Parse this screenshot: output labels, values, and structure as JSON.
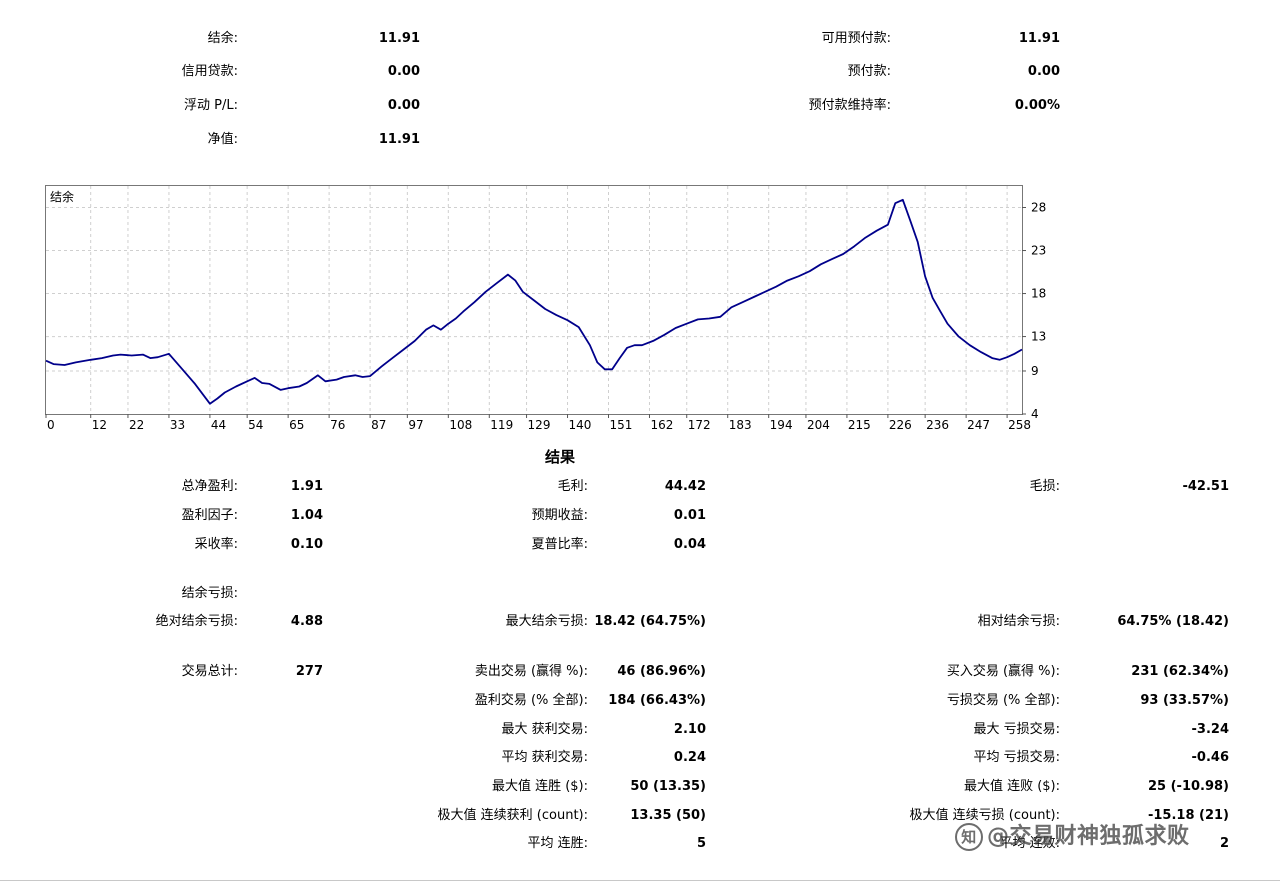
{
  "account": {
    "balance_label": "结余:",
    "balance": "11.91",
    "credit_label": "信用贷款:",
    "credit": "0.00",
    "floating_label": "浮动 P/L:",
    "floating": "0.00",
    "equity_label": "净值:",
    "equity": "11.91",
    "free_margin_label": "可用预付款:",
    "free_margin": "11.91",
    "margin_label": "预付款:",
    "margin": "0.00",
    "margin_level_label": "预付款维持率:",
    "margin_level": "0.00%"
  },
  "chart_data": {
    "type": "line",
    "title": "结余",
    "x_ticks": [
      0,
      12,
      22,
      33,
      44,
      54,
      65,
      76,
      87,
      97,
      108,
      119,
      129,
      140,
      151,
      162,
      172,
      183,
      194,
      204,
      215,
      226,
      236,
      247,
      258
    ],
    "y_ticks": [
      4,
      9,
      13,
      18,
      23,
      28
    ],
    "xlim": [
      0,
      262
    ],
    "ylim": [
      4,
      30.5
    ],
    "line_color": "#00008b",
    "series": [
      {
        "x": [
          0,
          2,
          5,
          8,
          12,
          15,
          18,
          20,
          23,
          26,
          28,
          30,
          33,
          36,
          40,
          44,
          46,
          48,
          51,
          54,
          56,
          58,
          60,
          63,
          65,
          68,
          70,
          73,
          75,
          78,
          80,
          83,
          85,
          87,
          90,
          93,
          96,
          99,
          102,
          104,
          106,
          108,
          110,
          112,
          115,
          118,
          121,
          124,
          126,
          128,
          131,
          134,
          137,
          140,
          143,
          146,
          148,
          150,
          152,
          154,
          156,
          158,
          160,
          163,
          166,
          169,
          172,
          175,
          178,
          181,
          184,
          187,
          190,
          193,
          196,
          199,
          202,
          205,
          208,
          211,
          214,
          217,
          220,
          223,
          226,
          228,
          230,
          232,
          234,
          236,
          238,
          240,
          242,
          245,
          248,
          251,
          254,
          256,
          258,
          260,
          262
        ],
        "y": [
          10.2,
          9.8,
          9.7,
          10,
          10.3,
          10.5,
          10.8,
          10.9,
          10.8,
          10.9,
          10.5,
          10.6,
          11,
          9.5,
          7.5,
          5.2,
          5.8,
          6.5,
          7.2,
          7.8,
          8.2,
          7.6,
          7.5,
          6.8,
          7,
          7.2,
          7.6,
          8.5,
          7.8,
          8,
          8.3,
          8.5,
          8.3,
          8.4,
          9.5,
          10.5,
          11.5,
          12.5,
          13.8,
          14.3,
          13.8,
          14.5,
          15.1,
          15.9,
          17,
          18.2,
          19.2,
          20.2,
          19.5,
          18.2,
          17.2,
          16.2,
          15.5,
          14.9,
          14.1,
          12,
          10,
          9.2,
          9.2,
          10.5,
          11.7,
          12,
          12,
          12.5,
          13.2,
          14,
          14.5,
          15,
          15.1,
          15.3,
          16.4,
          17,
          17.6,
          18.2,
          18.8,
          19.5,
          20,
          20.6,
          21.4,
          22,
          22.6,
          23.5,
          24.5,
          25.3,
          26,
          28.5,
          28.9,
          26.5,
          24,
          20,
          17.5,
          16,
          14.5,
          13,
          12,
          11.2,
          10.5,
          10.3,
          10.6,
          11,
          11.5
        ]
      }
    ]
  },
  "results": {
    "title": "结果",
    "net_profit_label": "总净盈利:",
    "net_profit": "1.91",
    "gross_profit_label": "毛利:",
    "gross_profit": "44.42",
    "gross_loss_label": "毛损:",
    "gross_loss": "-42.51",
    "profit_factor_label": "盈利因子:",
    "profit_factor": "1.04",
    "expected_payoff_label": "预期收益:",
    "expected_payoff": "0.01",
    "recovery_factor_label": "采收率:",
    "recovery_factor": "0.10",
    "sharpe_label": "夏普比率:",
    "sharpe": "0.04",
    "balance_drawdown_label": "结余亏损:",
    "abs_drawdown_label": "绝对结余亏损:",
    "abs_drawdown": "4.88",
    "max_drawdown_label": "最大结余亏损:",
    "max_drawdown": "18.42 (64.75%)",
    "rel_drawdown_label": "相对结余亏损:",
    "rel_drawdown": "64.75% (18.42)",
    "total_trades_label": "交易总计:",
    "total_trades": "277",
    "short_trades_label": "卖出交易 (赢得 %):",
    "short_trades": "46 (86.96%)",
    "long_trades_label": "买入交易 (赢得 %):",
    "long_trades": "231 (62.34%)",
    "profit_trades_label": "盈利交易 (% 全部):",
    "profit_trades": "184 (66.43%)",
    "loss_trades_label": "亏损交易 (% 全部):",
    "loss_trades": "93 (33.57%)",
    "largest_profit_label": "最大 获利交易:",
    "largest_profit": "2.10",
    "largest_loss_label": "最大 亏损交易:",
    "largest_loss": "-3.24",
    "avg_profit_label": "平均 获利交易:",
    "avg_profit": "0.24",
    "avg_loss_label": "平均 亏损交易:",
    "avg_loss": "-0.46",
    "max_consec_wins_label": "最大值 连胜 ($):",
    "max_consec_wins": "50 (13.35)",
    "max_consec_losses_label": "最大值 连败 ($):",
    "max_consec_losses": "25 (-10.98)",
    "maximal_consec_profit_label": "极大值 连续获利 (count):",
    "maximal_consec_profit": "13.35 (50)",
    "maximal_consec_loss_label": "极大值 连续亏损 (count):",
    "maximal_consec_loss": "-15.18 (21)",
    "avg_consec_wins_label": "平均 连胜:",
    "avg_consec_wins": "5",
    "avg_consec_losses_label": "平均 连败:",
    "avg_consec_losses": "2"
  },
  "watermark": {
    "logo": "知",
    "text": "@交易财神独孤求败"
  }
}
